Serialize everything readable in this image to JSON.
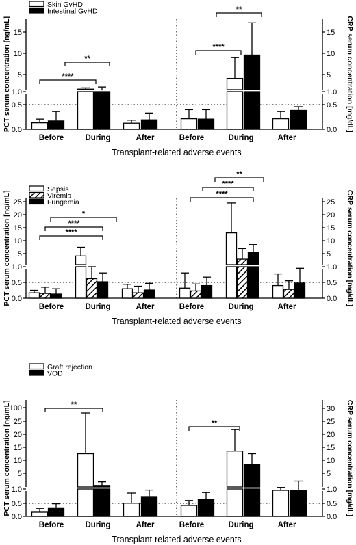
{
  "chart_data": [
    {
      "type": "bar",
      "xlabel": "Transplant-related adverse events",
      "ylabel_left": "PCT serum concentration [ng/mL]",
      "ylabel_right": "CRP serum concentration [mg/dL]",
      "categories": [
        "Before",
        "During",
        "After"
      ],
      "series": [
        {
          "name": "Skin GvHD",
          "fill": "white"
        },
        {
          "name": "Intestinal GvHD",
          "fill": "black"
        }
      ],
      "pct": {
        "lower_ticks": [
          "0.0",
          "0.5",
          "1.0"
        ],
        "upper_ticks": [
          "5",
          "10",
          "15"
        ],
        "values": [
          [
            0.17,
            0.22
          ],
          [
            1.6,
            1.3
          ],
          [
            0.16,
            0.25
          ]
        ],
        "errors": [
          [
            0.27,
            0.47
          ],
          [
            1.9,
            2.1
          ],
          [
            0.24,
            0.43
          ]
        ]
      },
      "crp": {
        "lower_ticks": [
          "0.0",
          "0.5",
          "1.0"
        ],
        "upper_ticks": [
          "5",
          "10",
          "15"
        ],
        "values": [
          [
            0.28,
            0.27
          ],
          [
            4.1,
            9.6
          ],
          [
            0.28,
            0.5
          ]
        ],
        "errors": [
          [
            0.52,
            0.52
          ],
          [
            9.0,
            17.2
          ],
          [
            0.47,
            0.6
          ]
        ]
      },
      "reference_line": 0.5,
      "significance": [
        {
          "axis": "pct",
          "label": "****"
        },
        {
          "axis": "pct",
          "label": "**"
        },
        {
          "axis": "crp",
          "label": "****"
        },
        {
          "axis": "crp",
          "label": "**"
        }
      ]
    },
    {
      "type": "bar",
      "xlabel": "Transplant-related adverse events",
      "ylabel_left": "PCT serum concentration [ng/mL]",
      "ylabel_right": "CRP serum concentration [mg/dL]",
      "categories": [
        "Before",
        "During",
        "After"
      ],
      "series": [
        {
          "name": "Sepsis",
          "fill": "white"
        },
        {
          "name": "Viremia",
          "fill": "hatch"
        },
        {
          "name": "Fungemia",
          "fill": "black"
        }
      ],
      "pct": {
        "lower_ticks": [
          "0.0",
          "0.5",
          "1.0"
        ],
        "upper_ticks": [
          "5",
          "10",
          "15",
          "20",
          "25"
        ],
        "values": [
          [
            0.17,
            0.15,
            0.13
          ],
          [
            4.3,
            0.62,
            0.52
          ],
          [
            0.3,
            0.17,
            0.26
          ]
        ],
        "errors": [
          [
            0.25,
            0.35,
            0.3
          ],
          [
            7.5,
            1.0,
            0.8
          ],
          [
            0.44,
            0.38,
            0.47
          ]
        ]
      },
      "crp": {
        "lower_ticks": [
          "0.0",
          "0.5",
          "1.0"
        ],
        "upper_ticks": [
          "5",
          "10",
          "15",
          "20",
          "25"
        ],
        "values": [
          [
            0.32,
            0.23,
            0.4
          ],
          [
            13.0,
            3.3,
            5.4
          ],
          [
            0.4,
            0.28,
            0.48
          ]
        ],
        "errors": [
          [
            0.8,
            0.45,
            0.67
          ],
          [
            24.5,
            7.0,
            8.5
          ],
          [
            0.77,
            0.55,
            0.95
          ]
        ]
      },
      "reference_line": 0.5,
      "significance": [
        {
          "axis": "pct",
          "label": "****"
        },
        {
          "axis": "pct",
          "label": "****"
        },
        {
          "axis": "pct",
          "label": "*"
        },
        {
          "axis": "crp",
          "label": "****"
        },
        {
          "axis": "crp",
          "label": "****"
        },
        {
          "axis": "crp",
          "label": "**"
        }
      ]
    },
    {
      "type": "bar",
      "xlabel": "Transplant-related adverse events",
      "ylabel_left": "PCT serum concentration [ng/mL]",
      "ylabel_right": "CRP serum concentration [mg/dL]",
      "categories": [
        "Before",
        "During",
        "After"
      ],
      "series": [
        {
          "name": "Graft rejection",
          "fill": "white"
        },
        {
          "name": "VOD",
          "fill": "black"
        }
      ],
      "pct": {
        "lower_ticks": [
          "0.0",
          "0.5",
          "1.0"
        ],
        "upper_ticks": [
          "5",
          "10",
          "15",
          "20",
          "25",
          "100"
        ],
        "values": [
          [
            0.15,
            0.29
          ],
          [
            12.5,
            1.9
          ],
          [
            0.48,
            0.7
          ]
        ],
        "errors": [
          [
            0.28,
            0.46
          ],
          [
            88,
            2.8
          ],
          [
            0.85,
            0.96
          ]
        ]
      },
      "crp": {
        "lower_ticks": [
          "0.0",
          "0.5",
          "1.0"
        ],
        "upper_ticks": [
          "5",
          "10",
          "15",
          "20",
          "25",
          "30"
        ],
        "values": [
          [
            0.4,
            0.62
          ],
          [
            13.5,
            8.5
          ],
          [
            0.95,
            0.95
          ]
        ],
        "errors": [
          [
            0.58,
            0.87
          ],
          [
            21.8,
            12.5
          ],
          [
            1.4,
            3.0
          ]
        ]
      },
      "reference_line": 0.5,
      "significance": [
        {
          "axis": "pct",
          "label": "**"
        },
        {
          "axis": "crp",
          "label": "**"
        }
      ]
    }
  ]
}
